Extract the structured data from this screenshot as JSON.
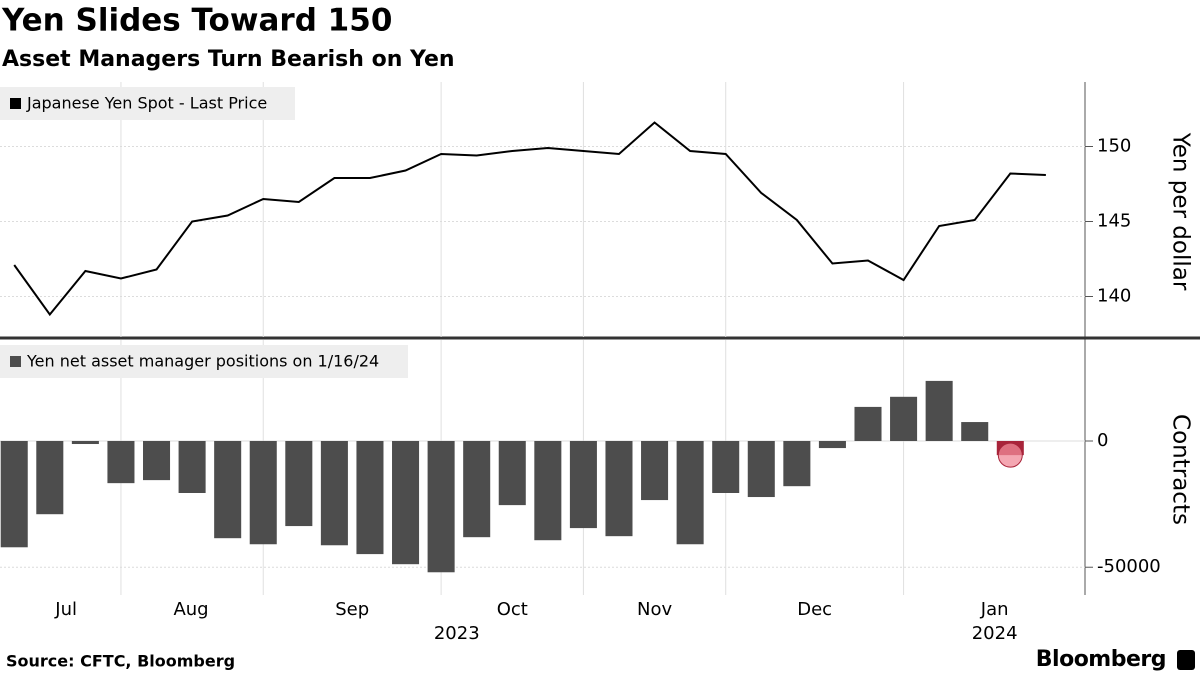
{
  "title": "Yen Slides Toward 150",
  "subtitle": "Asset Managers Turn Bearish on Yen",
  "source": "Source: CFTC, Bloomberg",
  "brand": "Bloomberg",
  "chart_data": [
    {
      "type": "line",
      "y_label": "Yen per dollar",
      "x": [
        0,
        1,
        2,
        3,
        4,
        5,
        6,
        7,
        8,
        9,
        10,
        11,
        12,
        13,
        14,
        15,
        16,
        17,
        18,
        19,
        20,
        21,
        22,
        23,
        24,
        25,
        26,
        27,
        28,
        29
      ],
      "series": [
        {
          "name": "Japanese Yen Spot - Last Price",
          "color": "#000000",
          "values": [
            142.1,
            138.8,
            141.7,
            141.2,
            141.8,
            145.0,
            145.4,
            146.5,
            146.3,
            147.9,
            147.9,
            148.4,
            149.5,
            149.4,
            149.7,
            149.9,
            149.7,
            149.5,
            151.6,
            149.7,
            149.5,
            146.9,
            145.1,
            142.2,
            142.4,
            141.1,
            144.7,
            145.1,
            148.2,
            148.1
          ]
        }
      ],
      "xlim": [
        -0.4,
        30.1
      ],
      "xgrid": [
        3,
        7,
        12,
        16,
        20,
        25
      ],
      "ylim": [
        137.3,
        154.3
      ],
      "yticks": [
        140,
        145,
        150
      ],
      "grid": true
    },
    {
      "type": "bar",
      "y_label": "Contracts",
      "x": [
        0,
        1,
        2,
        3,
        4,
        5,
        6,
        7,
        8,
        9,
        10,
        11,
        12,
        13,
        14,
        15,
        16,
        17,
        18,
        19,
        20,
        21,
        22,
        23,
        24,
        25,
        26,
        27,
        28
      ],
      "series": [
        {
          "name": "Yen net asset manager positions on 1/16/24",
          "color": "#4d4d4d",
          "values": [
            -42100,
            -29000,
            -1200,
            -16700,
            -15500,
            -20600,
            -38500,
            -40900,
            -33700,
            -41300,
            -44800,
            -48800,
            -52000,
            -38100,
            -25400,
            -39300,
            -34500,
            -37700,
            -23400,
            -40900,
            -20600,
            -22200,
            -17900,
            -2800,
            13500,
            17500,
            23800,
            7500,
            -5600
          ],
          "highlight": {
            "index": 28,
            "color": "#a8243a",
            "marker_color": "#f08a98"
          }
        }
      ],
      "xlim": [
        -0.4,
        30.1
      ],
      "xgrid": [
        3,
        7,
        12,
        16,
        20,
        25
      ],
      "xticks": [
        {
          "value": 1.46,
          "label": "Jul"
        },
        {
          "value": 4.97,
          "label": "Aug"
        },
        {
          "value": 9.5,
          "label": "Sep"
        },
        {
          "value": 14.0,
          "label": "Oct"
        },
        {
          "value": 18.0,
          "label": "Nov"
        },
        {
          "value": 22.5,
          "label": "Dec"
        },
        {
          "value": 27.56,
          "label": "Jan"
        }
      ],
      "year_ticks": [
        {
          "value": 12.44,
          "label": "2023"
        },
        {
          "value": 27.56,
          "label": "2024"
        }
      ],
      "ylim": [
        -61000,
        40000
      ],
      "yticks": [
        -50000,
        0
      ],
      "grid": true
    }
  ]
}
